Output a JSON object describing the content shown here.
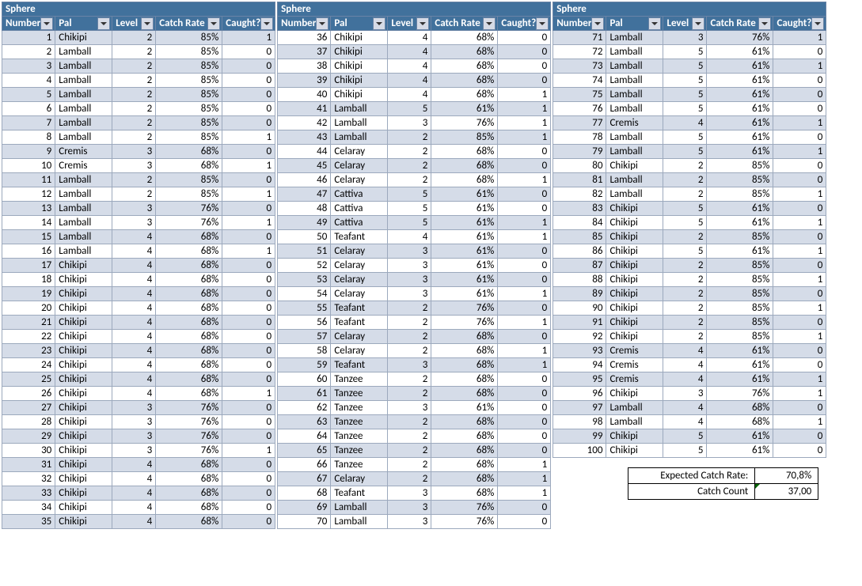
{
  "headers": {
    "group": "Sphere",
    "cols": [
      "Number",
      "Pal",
      "Level",
      "Catch Rate",
      "Caught?"
    ]
  },
  "summary": {
    "expected_label": "Expected Catch Rate:",
    "expected_value": "70,8%",
    "count_label": "Catch Count",
    "count_value": "37,00"
  },
  "rows": [
    [
      1,
      "Chikipi",
      2,
      "85%",
      1
    ],
    [
      2,
      "Lamball",
      2,
      "85%",
      0
    ],
    [
      3,
      "Lamball",
      2,
      "85%",
      0
    ],
    [
      4,
      "Lamball",
      2,
      "85%",
      0
    ],
    [
      5,
      "Lamball",
      2,
      "85%",
      0
    ],
    [
      6,
      "Lamball",
      2,
      "85%",
      0
    ],
    [
      7,
      "Lamball",
      2,
      "85%",
      0
    ],
    [
      8,
      "Lamball",
      2,
      "85%",
      1
    ],
    [
      9,
      "Cremis",
      3,
      "68%",
      0
    ],
    [
      10,
      "Cremis",
      3,
      "68%",
      1
    ],
    [
      11,
      "Lamball",
      2,
      "85%",
      0
    ],
    [
      12,
      "Lamball",
      2,
      "85%",
      1
    ],
    [
      13,
      "Lamball",
      3,
      "76%",
      0
    ],
    [
      14,
      "Lamball",
      3,
      "76%",
      1
    ],
    [
      15,
      "Lamball",
      4,
      "68%",
      0
    ],
    [
      16,
      "Lamball",
      4,
      "68%",
      1
    ],
    [
      17,
      "Chikipi",
      4,
      "68%",
      0
    ],
    [
      18,
      "Chikipi",
      4,
      "68%",
      0
    ],
    [
      19,
      "Chikipi",
      4,
      "68%",
      0
    ],
    [
      20,
      "Chikipi",
      4,
      "68%",
      0
    ],
    [
      21,
      "Chikipi",
      4,
      "68%",
      0
    ],
    [
      22,
      "Chikipi",
      4,
      "68%",
      0
    ],
    [
      23,
      "Chikipi",
      4,
      "68%",
      0
    ],
    [
      24,
      "Chikipi",
      4,
      "68%",
      0
    ],
    [
      25,
      "Chikipi",
      4,
      "68%",
      0
    ],
    [
      26,
      "Chikipi",
      4,
      "68%",
      1
    ],
    [
      27,
      "Chikipi",
      3,
      "76%",
      0
    ],
    [
      28,
      "Chikipi",
      3,
      "76%",
      0
    ],
    [
      29,
      "Chikipi",
      3,
      "76%",
      0
    ],
    [
      30,
      "Chikipi",
      3,
      "76%",
      1
    ],
    [
      31,
      "Chikipi",
      4,
      "68%",
      0
    ],
    [
      32,
      "Chikipi",
      4,
      "68%",
      0
    ],
    [
      33,
      "Chikipi",
      4,
      "68%",
      0
    ],
    [
      34,
      "Chikipi",
      4,
      "68%",
      0
    ],
    [
      35,
      "Chikipi",
      4,
      "68%",
      0
    ],
    [
      36,
      "Chikipi",
      4,
      "68%",
      0
    ],
    [
      37,
      "Chikipi",
      4,
      "68%",
      0
    ],
    [
      38,
      "Chikipi",
      4,
      "68%",
      0
    ],
    [
      39,
      "Chikipi",
      4,
      "68%",
      0
    ],
    [
      40,
      "Chikipi",
      4,
      "68%",
      1
    ],
    [
      41,
      "Lamball",
      5,
      "61%",
      1
    ],
    [
      42,
      "Lamball",
      3,
      "76%",
      1
    ],
    [
      43,
      "Lamball",
      2,
      "85%",
      1
    ],
    [
      44,
      "Celaray",
      2,
      "68%",
      0
    ],
    [
      45,
      "Celaray",
      2,
      "68%",
      0
    ],
    [
      46,
      "Celaray",
      2,
      "68%",
      1
    ],
    [
      47,
      "Cattiva",
      5,
      "61%",
      0
    ],
    [
      48,
      "Cattiva",
      5,
      "61%",
      0
    ],
    [
      49,
      "Cattiva",
      5,
      "61%",
      1
    ],
    [
      50,
      "Teafant",
      4,
      "61%",
      1
    ],
    [
      51,
      "Celaray",
      3,
      "61%",
      0
    ],
    [
      52,
      "Celaray",
      3,
      "61%",
      0
    ],
    [
      53,
      "Celaray",
      3,
      "61%",
      0
    ],
    [
      54,
      "Celaray",
      3,
      "61%",
      1
    ],
    [
      55,
      "Teafant",
      2,
      "76%",
      0
    ],
    [
      56,
      "Teafant",
      2,
      "76%",
      1
    ],
    [
      57,
      "Celaray",
      2,
      "68%",
      0
    ],
    [
      58,
      "Celaray",
      2,
      "68%",
      1
    ],
    [
      59,
      "Teafant",
      3,
      "68%",
      1
    ],
    [
      60,
      "Tanzee",
      2,
      "68%",
      0
    ],
    [
      61,
      "Tanzee",
      2,
      "68%",
      0
    ],
    [
      62,
      "Tanzee",
      3,
      "61%",
      0
    ],
    [
      63,
      "Tanzee",
      2,
      "68%",
      0
    ],
    [
      64,
      "Tanzee",
      2,
      "68%",
      0
    ],
    [
      65,
      "Tanzee",
      2,
      "68%",
      0
    ],
    [
      66,
      "Tanzee",
      2,
      "68%",
      1
    ],
    [
      67,
      "Celaray",
      2,
      "68%",
      1
    ],
    [
      68,
      "Teafant",
      3,
      "68%",
      1
    ],
    [
      69,
      "Lamball",
      3,
      "76%",
      0
    ],
    [
      70,
      "Lamball",
      3,
      "76%",
      0
    ],
    [
      71,
      "Lamball",
      3,
      "76%",
      1
    ],
    [
      72,
      "Lamball",
      5,
      "61%",
      0
    ],
    [
      73,
      "Lamball",
      5,
      "61%",
      1
    ],
    [
      74,
      "Lamball",
      5,
      "61%",
      0
    ],
    [
      75,
      "Lamball",
      5,
      "61%",
      0
    ],
    [
      76,
      "Lamball",
      5,
      "61%",
      0
    ],
    [
      77,
      "Cremis",
      4,
      "61%",
      1
    ],
    [
      78,
      "Lamball",
      5,
      "61%",
      0
    ],
    [
      79,
      "Lamball",
      5,
      "61%",
      1
    ],
    [
      80,
      "Chikipi",
      2,
      "85%",
      0
    ],
    [
      81,
      "Lamball",
      2,
      "85%",
      0
    ],
    [
      82,
      "Lamball",
      2,
      "85%",
      1
    ],
    [
      83,
      "Chikipi",
      5,
      "61%",
      0
    ],
    [
      84,
      "Chikipi",
      5,
      "61%",
      1
    ],
    [
      85,
      "Chikipi",
      2,
      "85%",
      0
    ],
    [
      86,
      "Chikipi",
      5,
      "61%",
      1
    ],
    [
      87,
      "Chikipi",
      2,
      "85%",
      0
    ],
    [
      88,
      "Chikipi",
      2,
      "85%",
      1
    ],
    [
      89,
      "Chikipi",
      2,
      "85%",
      0
    ],
    [
      90,
      "Chikipi",
      2,
      "85%",
      1
    ],
    [
      91,
      "Chikipi",
      2,
      "85%",
      0
    ],
    [
      92,
      "Chikipi",
      2,
      "85%",
      1
    ],
    [
      93,
      "Cremis",
      4,
      "61%",
      0
    ],
    [
      94,
      "Cremis",
      4,
      "61%",
      0
    ],
    [
      95,
      "Cremis",
      4,
      "61%",
      1
    ],
    [
      96,
      "Chikipi",
      3,
      "76%",
      1
    ],
    [
      97,
      "Lamball",
      4,
      "68%",
      0
    ],
    [
      98,
      "Lamball",
      4,
      "68%",
      1
    ],
    [
      99,
      "Chikipi",
      5,
      "61%",
      0
    ],
    [
      100,
      "Chikipi",
      5,
      "61%",
      0
    ]
  ]
}
